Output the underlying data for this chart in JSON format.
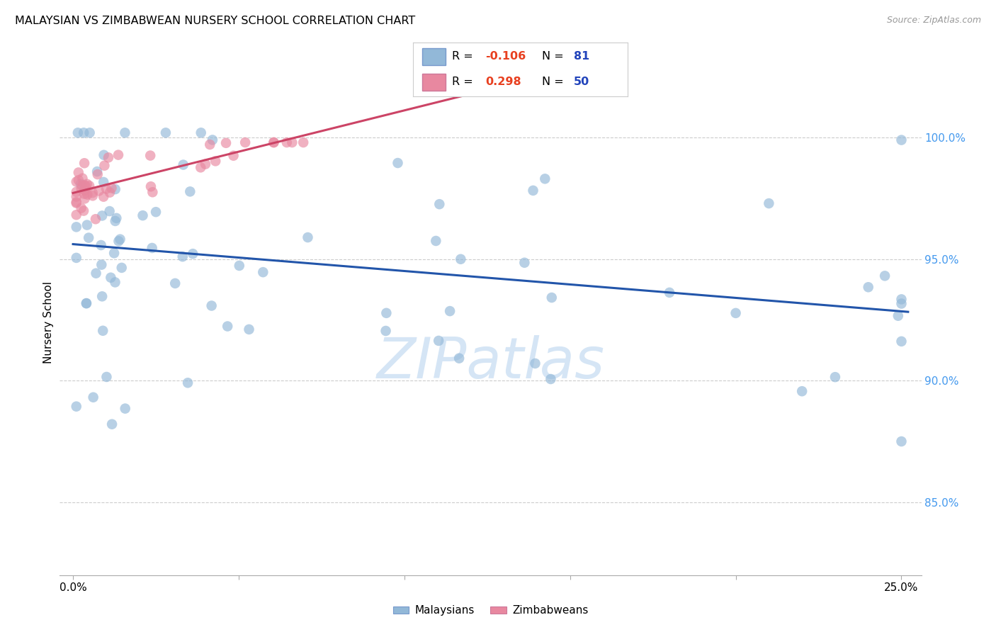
{
  "title": "MALAYSIAN VS ZIMBABWEAN NURSERY SCHOOL CORRELATION CHART",
  "source": "Source: ZipAtlas.com",
  "ylabel": "Nursery School",
  "ytick_labels": [
    "85.0%",
    "90.0%",
    "95.0%",
    "100.0%"
  ],
  "ytick_values": [
    0.85,
    0.9,
    0.95,
    1.0
  ],
  "xlim": [
    -0.004,
    0.256
  ],
  "ylim": [
    0.82,
    1.028
  ],
  "legend_r_blue": "-0.106",
  "legend_n_blue": "81",
  "legend_r_pink": "0.298",
  "legend_n_pink": "50",
  "blue_color": "#92B8D8",
  "pink_color": "#E888A0",
  "trend_blue": "#2255AA",
  "trend_pink": "#CC4466",
  "background_color": "#ffffff",
  "r_value_color": "#E84020",
  "n_value_color": "#2244BB",
  "right_axis_color": "#4499EE",
  "watermark_color": "#D5E5F5",
  "seed": 12
}
